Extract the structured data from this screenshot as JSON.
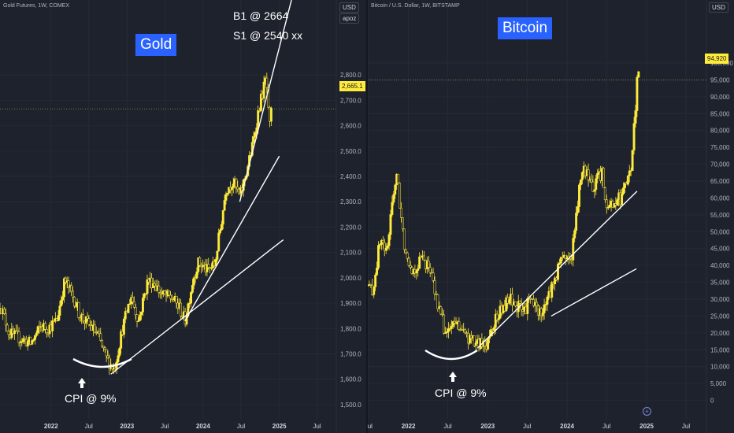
{
  "panes": [
    {
      "symbol": "Gold Futures, 1W, COMEX",
      "unit": "USD",
      "indicator_badge": "apoz",
      "title": "Gold",
      "annotations": [
        "B1 @ 2664",
        "S1 @ 2540 xx",
        "CPI @ 9%"
      ],
      "last_price": "2,665.1",
      "colors": {
        "candles": "#ffeb3b",
        "trendlines": "#ffffff",
        "title_bg": "#2962ff"
      },
      "icons": [
        "up-arrow-icon",
        "smile-curve"
      ]
    },
    {
      "symbol": "Bitcoin / U.S. Dollar, 1W, BITSTAMP",
      "unit": "USD",
      "title": "Bitcoin",
      "annotations": [
        "CPI @ 9%"
      ],
      "last_price": "94,920",
      "colors": {
        "candles": "#ffeb3b",
        "trendlines": "#ffffff",
        "title_bg": "#2962ff"
      },
      "icons": [
        "up-arrow-icon",
        "smile-curve",
        "plus-circle-icon"
      ]
    }
  ],
  "chart_data": [
    {
      "type": "line",
      "title": "Gold",
      "subtitle": "Gold Futures, 1W, COMEX",
      "y_unit": "USD",
      "ylim": [
        1450,
        2900
      ],
      "y_ticks": [
        "1,500.0",
        "1,600.0",
        "1,700.0",
        "1,800.0",
        "1,900.0",
        "2,000.0",
        "2,100.0",
        "2,200.0",
        "2,300.0",
        "2,400.0",
        "2,500.0",
        "2,600.0",
        "2,700.0",
        "2,800.0"
      ],
      "x_ticks": [
        "2022",
        "Jul",
        "2023",
        "Jul",
        "2024",
        "Jul",
        "2025",
        "Jul"
      ],
      "x_tick_dates": [
        "2022-01-01",
        "2022-07-01",
        "2023-01-01",
        "2023-07-01",
        "2024-01-01",
        "2024-07-01",
        "2025-01-01",
        "2025-07-01"
      ],
      "x_range": [
        "2021-05-01",
        "2025-09-05"
      ],
      "grid": true,
      "series": [
        {
          "x": [
            "2021-05-01",
            "2021-06-15",
            "2021-08-10",
            "2021-09-25",
            "2021-11-15",
            "2021-12-15",
            "2022-01-28",
            "2022-03-08",
            "2022-04-20",
            "2022-05-20",
            "2022-06-25",
            "2022-08-10",
            "2022-09-25",
            "2022-11-01",
            "2022-12-10",
            "2023-01-20",
            "2023-02-25",
            "2023-04-10",
            "2023-05-10",
            "2023-06-20",
            "2023-08-05",
            "2023-09-10",
            "2023-10-06",
            "2023-11-15",
            "2023-12-10",
            "2024-01-20",
            "2024-02-25",
            "2024-03-25",
            "2024-04-20",
            "2024-05-25",
            "2024-06-25",
            "2024-07-25",
            "2024-08-25",
            "2024-09-25",
            "2024-10-30",
            "2024-11-14",
            "2024-11-25"
          ],
          "y": [
            1900,
            1780,
            1760,
            1740,
            1810,
            1800,
            1830,
            1990,
            1920,
            1850,
            1820,
            1780,
            1680,
            1640,
            1800,
            1930,
            1830,
            1990,
            1980,
            1930,
            1920,
            1880,
            1830,
            2000,
            2060,
            2030,
            2050,
            2200,
            2350,
            2380,
            2320,
            2410,
            2520,
            2670,
            2790,
            2580,
            2665
          ]
        }
      ],
      "trendlines": [
        {
          "from": [
            "2022-10-15",
            1620
          ],
          "to": [
            "2025-01-20",
            2150
          ]
        },
        {
          "from": [
            "2023-10-06",
            1830
          ],
          "to": [
            "2025-01-01",
            2480
          ]
        },
        {
          "from": [
            "2024-06-25",
            2300
          ],
          "to": [
            "2025-09-05",
            3700
          ]
        }
      ],
      "annotations": [
        {
          "text": "B1 @ 2664"
        },
        {
          "text": "S1 @ 2540 xx"
        },
        {
          "text": "CPI @ 9%",
          "x": "2022-10-15",
          "y": 1540
        }
      ]
    },
    {
      "type": "line",
      "title": "Bitcoin",
      "subtitle": "Bitcoin / U.S. Dollar, 1W, BITSTAMP",
      "y_unit": "USD",
      "ylim": [
        -5000,
        107000
      ],
      "y_ticks": [
        "0",
        "5,000",
        "10,000",
        "15,000",
        "20,000",
        "25,000",
        "30,000",
        "35,000",
        "40,000",
        "45,000",
        "50,000",
        "55,000",
        "60,000",
        "65,000",
        "70,000",
        "75,000",
        "80,000",
        "85,000",
        "90,000",
        "95,000",
        "100,000"
      ],
      "x_ticks": [
        "Jul",
        "2022",
        "Jul",
        "2023",
        "Jul",
        "2024",
        "Jul",
        "2025",
        "Jul"
      ],
      "x_tick_dates": [
        "2021-07-01",
        "2022-01-01",
        "2022-07-01",
        "2023-01-01",
        "2023-07-01",
        "2024-01-01",
        "2024-07-01",
        "2025-01-01",
        "2025-07-01"
      ],
      "x_range": [
        "2021-06-28",
        "2025-08-28"
      ],
      "grid": true,
      "series": [
        {
          "x": [
            "2021-06-28",
            "2021-07-20",
            "2021-08-25",
            "2021-09-25",
            "2021-10-20",
            "2021-11-10",
            "2021-12-10",
            "2022-01-20",
            "2022-03-01",
            "2022-04-05",
            "2022-05-15",
            "2022-06-20",
            "2022-08-15",
            "2022-09-20",
            "2022-11-10",
            "2022-12-25",
            "2023-01-25",
            "2023-03-20",
            "2023-04-15",
            "2023-06-15",
            "2023-07-15",
            "2023-08-25",
            "2023-09-15",
            "2023-10-25",
            "2023-12-10",
            "2024-01-20",
            "2024-03-12",
            "2024-04-20",
            "2024-06-10",
            "2024-07-05",
            "2024-08-05",
            "2024-09-10",
            "2024-10-20",
            "2024-11-12",
            "2024-11-22",
            "2024-11-28"
          ],
          "y": [
            34000,
            32000,
            48000,
            43000,
            61000,
            66000,
            47000,
            38000,
            42000,
            40000,
            29000,
            20000,
            23000,
            19000,
            16500,
            16600,
            23000,
            28000,
            30000,
            26000,
            30000,
            26000,
            27000,
            34000,
            43000,
            42000,
            70000,
            63000,
            67000,
            57000,
            59000,
            60000,
            68000,
            88000,
            98000,
            94920
          ]
        }
      ],
      "trendlines": [
        {
          "from": [
            "2022-11-15",
            15500
          ],
          "to": [
            "2024-11-18",
            62000
          ]
        },
        {
          "from": [
            "2023-10-20",
            25000
          ],
          "to": [
            "2024-11-15",
            39000
          ]
        }
      ],
      "annotations": [
        {
          "text": "CPI @ 9%",
          "x": "2022-10-10",
          "y": 2000
        }
      ]
    }
  ]
}
